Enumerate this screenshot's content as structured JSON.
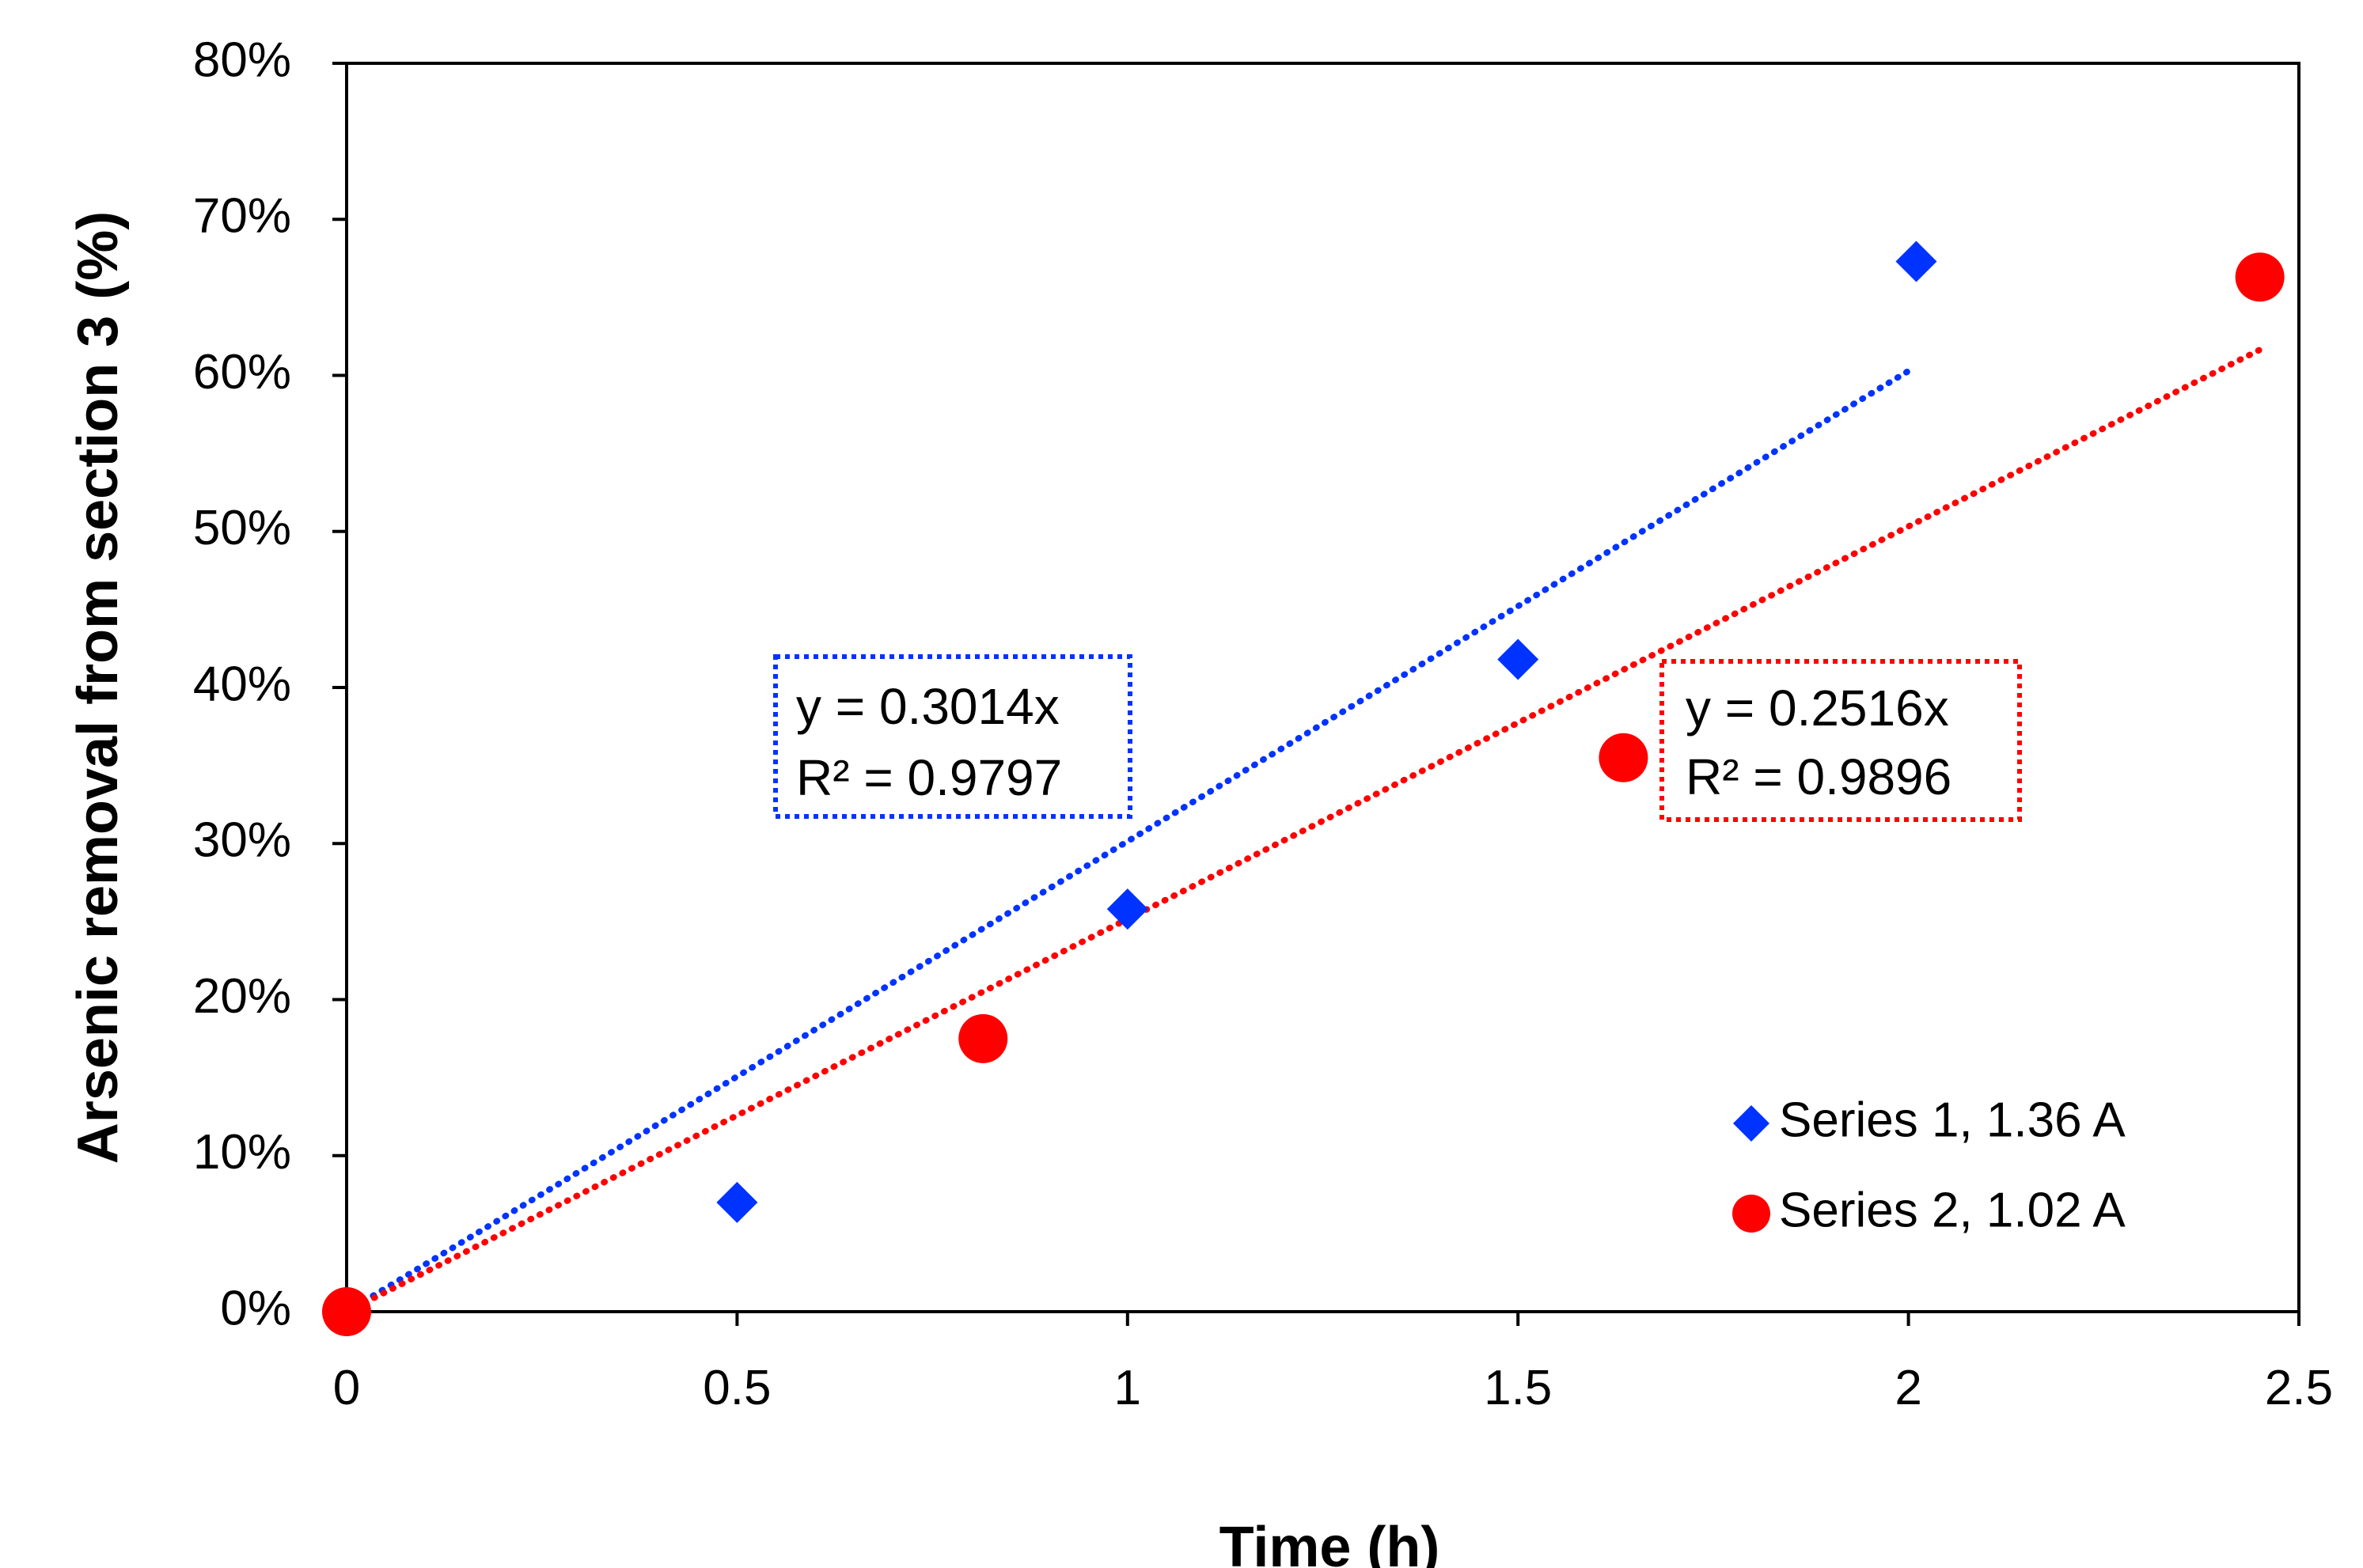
{
  "chart_data": {
    "type": "scatter",
    "title": "",
    "xlabel": "Time (h)",
    "ylabel": "Arsenic removal from section 3 (%)",
    "xlim": [
      0,
      2.5
    ],
    "ylim": [
      0,
      0.8
    ],
    "x_ticks": [
      {
        "value": 0,
        "label": "0"
      },
      {
        "value": 0.5,
        "label": "0.5"
      },
      {
        "value": 1,
        "label": "1"
      },
      {
        "value": 1.5,
        "label": "1.5"
      },
      {
        "value": 2,
        "label": "2"
      },
      {
        "value": 2.5,
        "label": "2.5"
      }
    ],
    "y_ticks": [
      {
        "value": 0,
        "label": "0%"
      },
      {
        "value": 0.1,
        "label": "10%"
      },
      {
        "value": 0.2,
        "label": "20%"
      },
      {
        "value": 0.3,
        "label": "30%"
      },
      {
        "value": 0.4,
        "label": "40%"
      },
      {
        "value": 0.5,
        "label": "50%"
      },
      {
        "value": 0.6,
        "label": "60%"
      },
      {
        "value": 0.7,
        "label": "70%"
      },
      {
        "value": 0.8,
        "label": "80%"
      }
    ],
    "grid": false,
    "legend_position": "bottom-right",
    "series": [
      {
        "name": "Series 1, 1.36 A",
        "marker": "diamond",
        "color": "#0033ff",
        "x": [
          0,
          0.5,
          1.0,
          1.5,
          2.01
        ],
        "y": [
          0,
          0.07,
          0.258,
          0.418,
          0.673
        ],
        "trendline": {
          "slope": 0.3014,
          "x_end": 2.0,
          "equation": "y = 0.3014x",
          "r_squared": "R² = 0.9797"
        }
      },
      {
        "name": "Series 2, 1.02 A",
        "marker": "circle",
        "color": "#ff0000",
        "x": [
          0,
          0.815,
          1.635,
          2.45
        ],
        "y": [
          0,
          0.175,
          0.355,
          0.663
        ],
        "trendline": {
          "slope": 0.2516,
          "x_end": 2.45,
          "equation": "y = 0.2516x",
          "r_squared": "R² = 0.9896"
        }
      }
    ]
  }
}
